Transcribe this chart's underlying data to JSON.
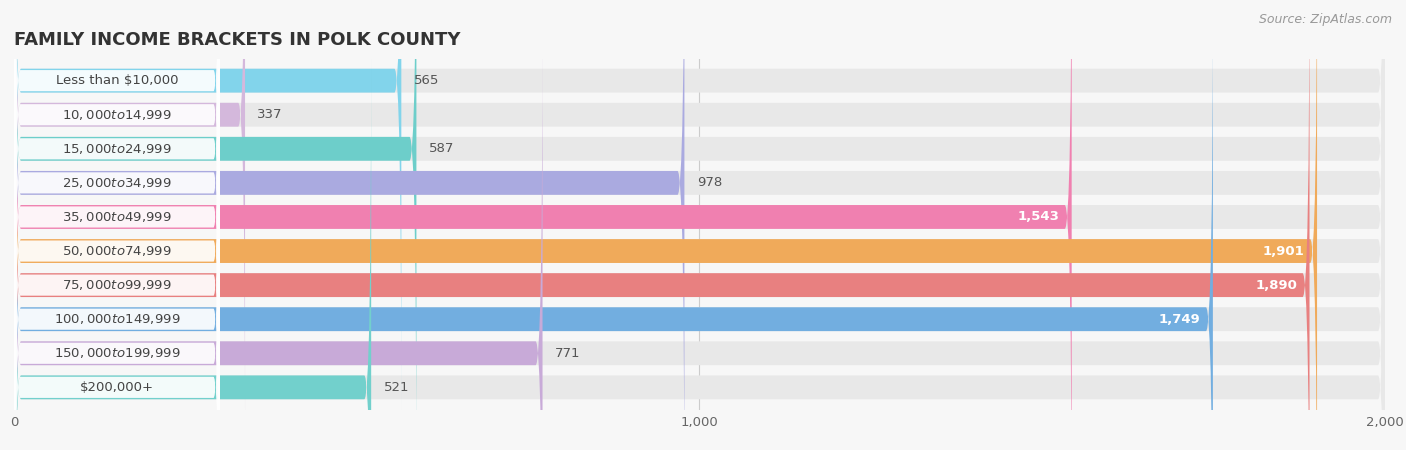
{
  "title": "FAMILY INCOME BRACKETS IN POLK COUNTY",
  "source": "Source: ZipAtlas.com",
  "categories": [
    "Less than $10,000",
    "$10,000 to $14,999",
    "$15,000 to $24,999",
    "$25,000 to $34,999",
    "$35,000 to $49,999",
    "$50,000 to $74,999",
    "$75,000 to $99,999",
    "$100,000 to $149,999",
    "$150,000 to $199,999",
    "$200,000+"
  ],
  "values": [
    565,
    337,
    587,
    978,
    1543,
    1901,
    1890,
    1749,
    771,
    521
  ],
  "bar_colors": [
    "#82d4eb",
    "#d4b8dc",
    "#6dceca",
    "#aaaae0",
    "#f080b0",
    "#f0aa5a",
    "#e88080",
    "#72aee0",
    "#c8aad8",
    "#72d0cc"
  ],
  "background_color": "#f7f7f7",
  "bar_bg_color": "#e8e8e8",
  "label_bg_color": "#ffffff",
  "xlim": [
    0,
    2000
  ],
  "title_fontsize": 13,
  "label_fontsize": 9.5,
  "value_fontsize": 9.5,
  "source_fontsize": 9
}
